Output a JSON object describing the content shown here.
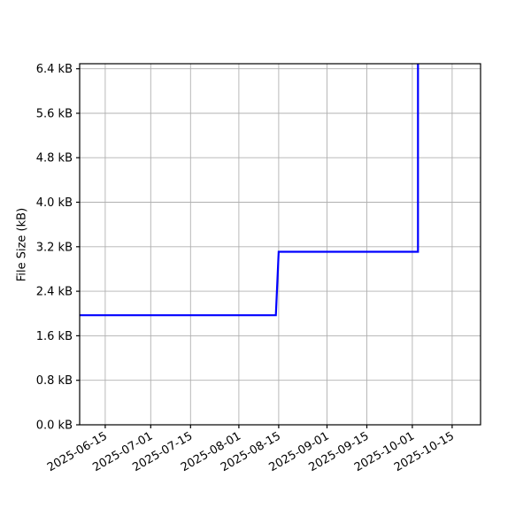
{
  "figure": {
    "background": "#ffffff",
    "title": ""
  },
  "chart_data": {
    "type": "line",
    "subtype": "step",
    "title": "",
    "xlabel": "",
    "ylabel": "File Size (kB)",
    "legend": false,
    "grid": true,
    "colors": {
      "line": "#0000ff",
      "grid": "#b0b0b0",
      "axis": "#000000",
      "tick_label": "#000000",
      "background": "#ffffff"
    },
    "x_axis": {
      "range": [
        "2025-06-06",
        "2025-10-25"
      ],
      "ticks": [
        "2025-06-15",
        "2025-07-01",
        "2025-07-15",
        "2025-08-01",
        "2025-08-15",
        "2025-09-01",
        "2025-09-15",
        "2025-10-01",
        "2025-10-15"
      ],
      "tick_rotation_deg": -30
    },
    "y_axis": {
      "range": [
        0,
        6.49
      ],
      "ticks": [
        0.0,
        0.8,
        1.6,
        2.4,
        3.2,
        4.0,
        4.8,
        5.6,
        6.4
      ],
      "tick_labels": [
        "0.0 kB",
        "0.8 kB",
        "1.6 kB",
        "2.4 kB",
        "3.2 kB",
        "4.0 kB",
        "4.8 kB",
        "5.6 kB",
        "6.4 kB"
      ]
    },
    "series": [
      {
        "points": [
          {
            "date": "2025-06-06",
            "kB": 1.97
          },
          {
            "date": "2025-08-14",
            "kB": 1.97
          },
          {
            "date": "2025-08-15",
            "kB": 3.11
          },
          {
            "date": "2025-10-03",
            "kB": 3.11
          },
          {
            "date": "2025-10-03",
            "kB": 6.5
          }
        ],
        "clipped_at_top": true
      }
    ]
  }
}
